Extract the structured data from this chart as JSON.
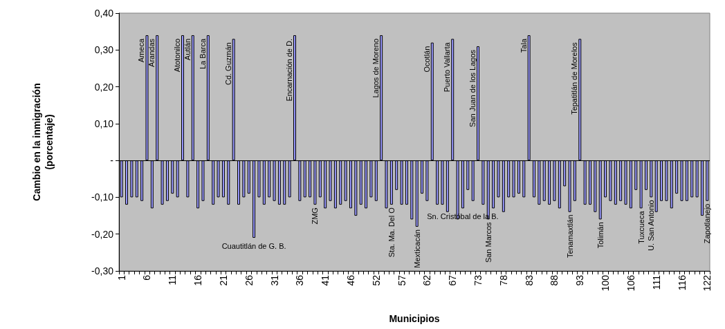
{
  "chart_data": {
    "type": "bar",
    "xlabel": "Municipios",
    "ylabel": "Cambio en la inmigración\n(porcentaje)",
    "categories": [
      "1",
      null,
      null,
      null,
      null,
      "6",
      null,
      null,
      null,
      null,
      "11",
      null,
      null,
      null,
      null,
      "16",
      null,
      null,
      null,
      null,
      "21",
      null,
      null,
      null,
      null,
      "26",
      null,
      null,
      null,
      null,
      "31",
      null,
      null,
      null,
      null,
      "36",
      null,
      null,
      null,
      null,
      "41",
      null,
      null,
      null,
      null,
      "46",
      null,
      null,
      null,
      null,
      "52",
      null,
      null,
      null,
      null,
      "57",
      null,
      null,
      null,
      null,
      "62",
      null,
      null,
      null,
      null,
      "67",
      null,
      null,
      null,
      null,
      "73",
      null,
      null,
      null,
      null,
      "78",
      null,
      null,
      null,
      null,
      "83",
      null,
      null,
      null,
      null,
      "88",
      null,
      null,
      null,
      null,
      "93",
      null,
      null,
      null,
      null,
      "100",
      null,
      null,
      null,
      null,
      "106",
      null,
      null,
      null,
      null,
      "111",
      null,
      null,
      null,
      null,
      "116",
      null,
      null,
      null,
      null,
      "122"
    ],
    "values": [
      -0.1,
      -0.12,
      -0.1,
      -0.1,
      -0.11,
      0.34,
      -0.13,
      0.34,
      -0.12,
      -0.11,
      -0.09,
      -0.1,
      0.34,
      -0.1,
      0.34,
      -0.13,
      -0.11,
      0.34,
      -0.12,
      -0.1,
      -0.1,
      -0.12,
      0.33,
      -0.12,
      -0.1,
      -0.09,
      -0.21,
      -0.1,
      -0.12,
      -0.1,
      -0.11,
      -0.12,
      -0.12,
      -0.1,
      0.34,
      -0.11,
      -0.1,
      -0.1,
      -0.12,
      -0.1,
      -0.13,
      -0.11,
      -0.13,
      -0.12,
      -0.11,
      -0.13,
      -0.15,
      -0.12,
      -0.13,
      -0.1,
      -0.11,
      0.34,
      -0.13,
      -0.12,
      -0.08,
      -0.12,
      -0.12,
      -0.16,
      -0.18,
      -0.09,
      -0.11,
      0.32,
      -0.12,
      -0.12,
      -0.14,
      0.33,
      -0.16,
      -0.13,
      -0.08,
      -0.11,
      0.31,
      -0.12,
      -0.16,
      -0.13,
      -0.1,
      -0.14,
      -0.1,
      -0.1,
      -0.09,
      -0.1,
      0.34,
      -0.1,
      -0.12,
      -0.11,
      -0.12,
      -0.11,
      -0.13,
      -0.07,
      -0.14,
      -0.11,
      0.33,
      -0.12,
      -0.12,
      -0.14,
      -0.16,
      -0.1,
      -0.11,
      -0.12,
      -0.11,
      -0.12,
      -0.13,
      -0.08,
      -0.13,
      -0.08,
      -0.1,
      -0.14,
      -0.11,
      -0.11,
      -0.13,
      -0.09,
      -0.11,
      -0.11,
      -0.1,
      -0.1,
      -0.15,
      -0.11
    ],
    "value_labels": [
      null,
      null,
      null,
      null,
      null,
      "Ameca",
      null,
      "Arandas",
      null,
      null,
      null,
      null,
      "Atotonilco",
      null,
      "Autlán",
      null,
      null,
      "La Barca",
      null,
      null,
      null,
      null,
      "Cd. Guzmán",
      null,
      null,
      null,
      "Cuautitlán de G. B.",
      null,
      null,
      null,
      null,
      null,
      null,
      null,
      "Encarnación de D.",
      null,
      null,
      null,
      "ZMG",
      null,
      null,
      null,
      null,
      null,
      null,
      null,
      null,
      null,
      null,
      null,
      null,
      "Lagos de Moreno",
      null,
      "Sta. Ma. Del O",
      null,
      null,
      null,
      null,
      "Mexticacán",
      null,
      null,
      "Ocotlán",
      null,
      null,
      null,
      "Puerto Vallarta",
      null,
      "Sn. Cristóbal de la B.",
      null,
      null,
      "San Juan de los Lagos",
      null,
      "San Marcos",
      null,
      null,
      null,
      null,
      null,
      null,
      null,
      "Tala",
      null,
      null,
      null,
      null,
      null,
      null,
      null,
      "Tenamaxtlán",
      null,
      "Tepatitlán de Morelos",
      null,
      null,
      null,
      "Tolimán",
      null,
      null,
      null,
      null,
      null,
      null,
      null,
      "Tuxcueca",
      null,
      "U. San Antonio",
      null,
      null,
      null,
      null,
      null,
      null,
      null,
      null,
      null,
      null,
      "Zapotlanejo"
    ],
    "color": "#9999ff",
    "ylim": [
      -0.3,
      0.4
    ],
    "yticks": [
      {
        "value": -0.3,
        "label": "-0,30"
      },
      {
        "value": -0.2,
        "label": "-0,20"
      },
      {
        "value": -0.1,
        "label": "-0,10"
      },
      {
        "value": 0,
        "label": "-"
      },
      {
        "value": 0.1,
        "label": "0,10"
      },
      {
        "value": 0.2,
        "label": "0,20"
      },
      {
        "value": 0.3,
        "label": "0,30"
      },
      {
        "value": 0.4,
        "label": "0,40"
      }
    ],
    "ref_lines": [
      {
        "axis": "y",
        "value": 0,
        "color": "#000000",
        "line_style": "solid"
      }
    ],
    "grid": false
  }
}
